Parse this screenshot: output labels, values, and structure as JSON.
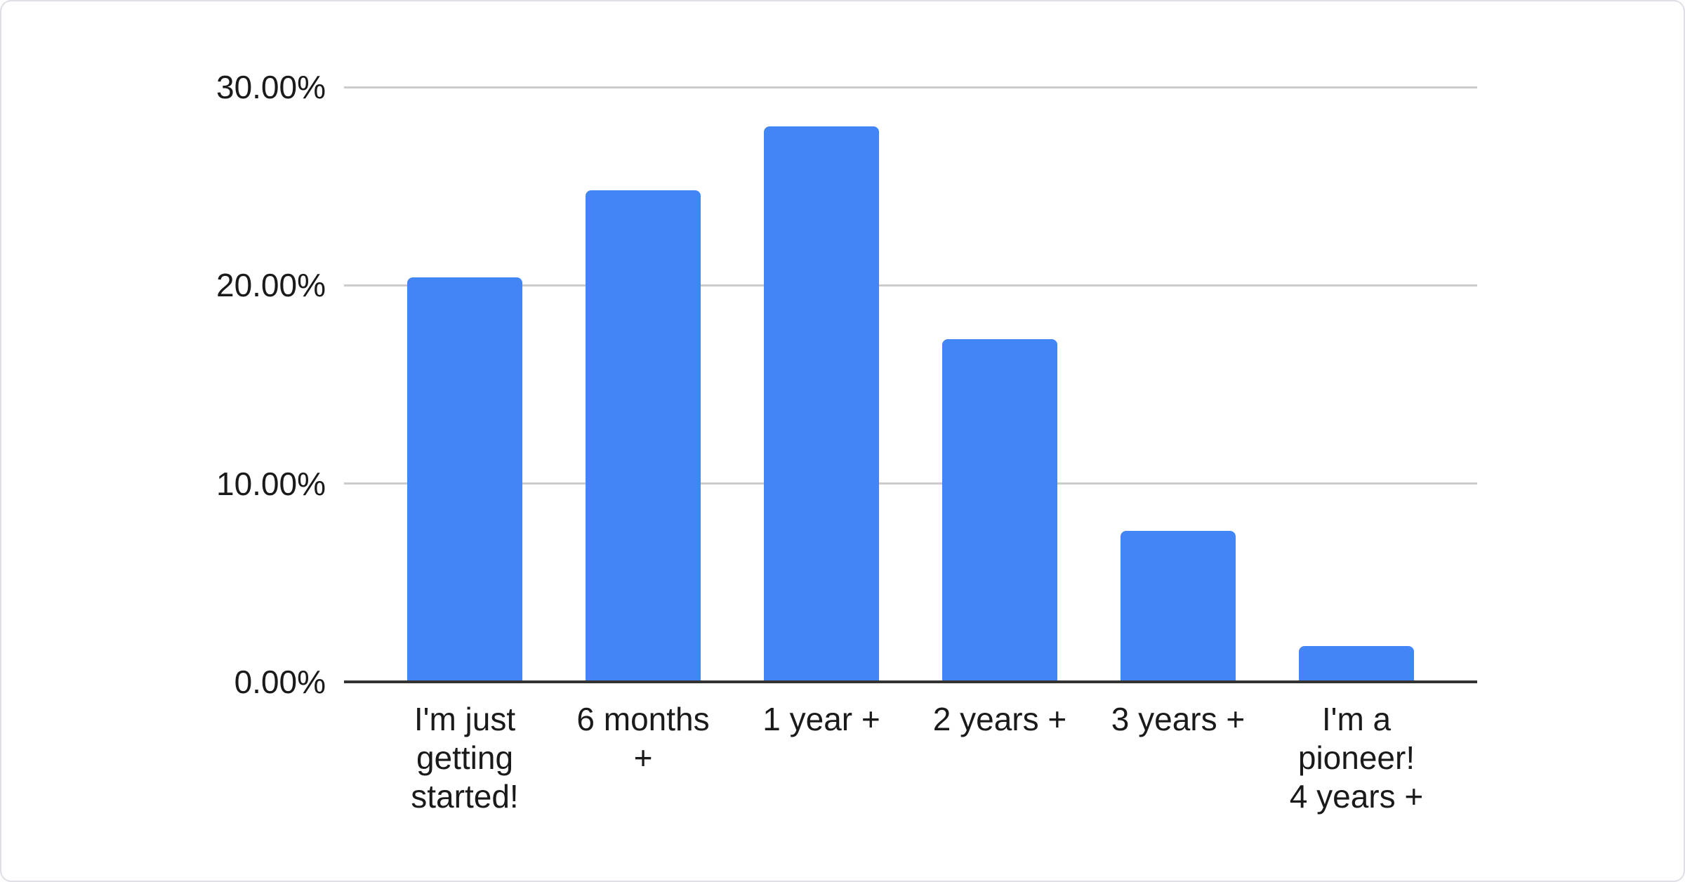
{
  "window": {
    "background": "#ffffff",
    "border_color": "#dde0e4"
  },
  "chart_data": {
    "type": "bar",
    "title": "",
    "xlabel": "",
    "ylabel": "",
    "categories": [
      "I'm just getting started!",
      "6 months +",
      "1 year +",
      "2 years +",
      "3 years +",
      "I'm a pioneer! 4 years +"
    ],
    "category_lines": [
      [
        "I'm just",
        "getting",
        "started!"
      ],
      [
        "6 months",
        "+"
      ],
      [
        "1 year +"
      ],
      [
        "2 years +"
      ],
      [
        "3 years +"
      ],
      [
        "I'm a",
        "pioneer!",
        "4 years +"
      ]
    ],
    "values": [
      20.4,
      24.8,
      28.0,
      17.3,
      7.6,
      1.8
    ],
    "value_unit": "%",
    "ylim": [
      0,
      30
    ],
    "y_ticks": [
      {
        "label": "30.00%",
        "value": 30
      },
      {
        "label": "20.00%",
        "value": 20
      },
      {
        "label": "10.00%",
        "value": 10
      },
      {
        "label": "0.00%",
        "value": 0
      }
    ],
    "grid": true,
    "legend": "none",
    "colors": {
      "bar": "#4285f4",
      "gridline": "#cccccc",
      "axis_line": "#333333",
      "label_text": "#1a1a1a"
    }
  }
}
